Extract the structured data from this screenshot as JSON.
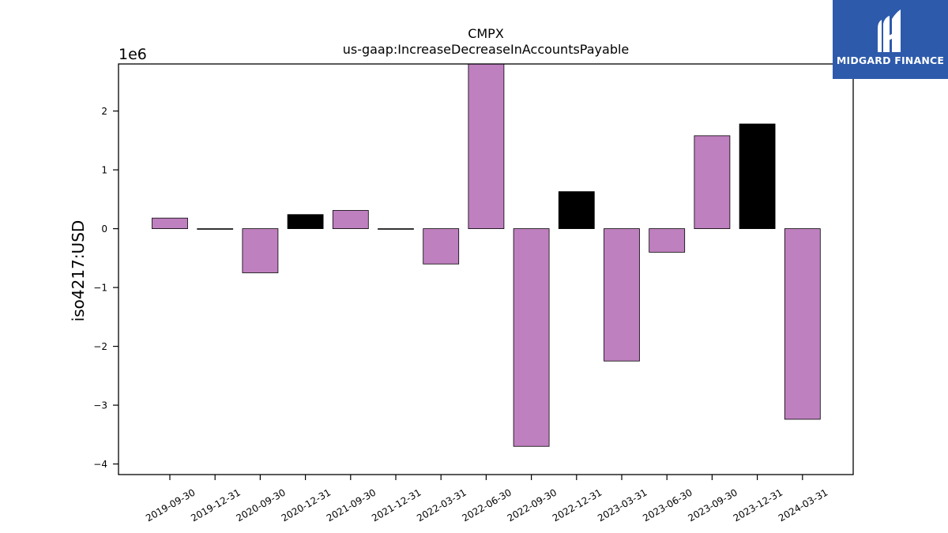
{
  "chart_data": {
    "type": "bar",
    "title": "CMPX",
    "subtitle": "us-gaap:IncreaseDecreaseInAccountsPayable",
    "ylabel": "iso4217:USD",
    "xlabel": "",
    "scale_note": "1e6",
    "ylim": [
      -4.18,
      2.8
    ],
    "yticks": [
      2,
      1,
      0,
      -1,
      -2,
      -3,
      -4
    ],
    "ytick_labels": [
      "2",
      "1",
      "0",
      "−1",
      "−2",
      "−3",
      "−4"
    ],
    "categories": [
      "2019-09-30",
      "2019-12-31",
      "2020-09-30",
      "2020-12-31",
      "2021-09-30",
      "2021-12-31",
      "2022-03-31",
      "2022-06-30",
      "2022-09-30",
      "2022-12-31",
      "2023-03-31",
      "2023-06-30",
      "2023-09-30",
      "2023-12-31",
      "2024-03-31"
    ],
    "values": [
      0.18,
      0.0,
      -0.75,
      0.24,
      0.31,
      0.0,
      -0.6,
      2.85,
      -3.7,
      0.63,
      -2.25,
      -0.4,
      1.58,
      1.78,
      -3.24
    ],
    "bar_colors": [
      "#bf80bf",
      "#bf80bf",
      "#bf80bf",
      "#000000",
      "#bf80bf",
      "#bf80bf",
      "#bf80bf",
      "#bf80bf",
      "#bf80bf",
      "#000000",
      "#bf80bf",
      "#bf80bf",
      "#bf80bf",
      "#000000",
      "#bf80bf"
    ],
    "grid": false,
    "legend": "none"
  },
  "logo": {
    "text": "MIDGARD FINANCE",
    "background": "#2d5aab"
  }
}
